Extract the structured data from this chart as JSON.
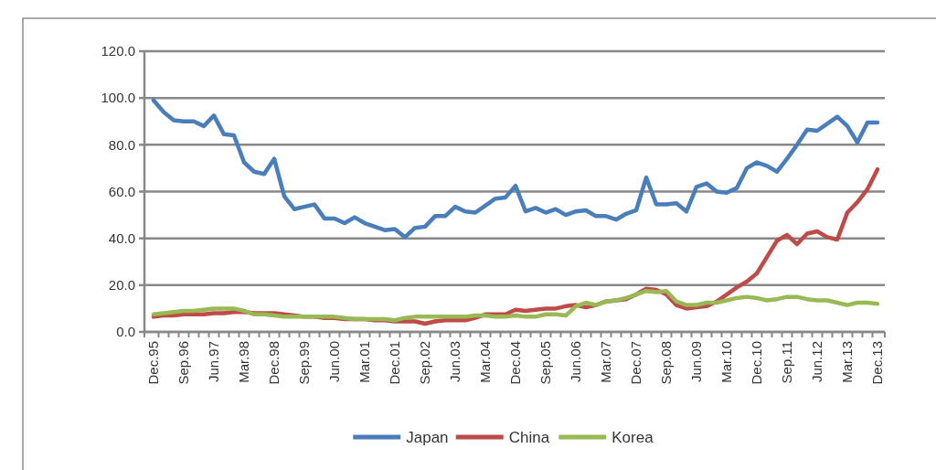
{
  "chart_data": {
    "type": "line",
    "categories": [
      "Dec.95",
      null,
      null,
      "Sep.96",
      null,
      null,
      "Jun.97",
      null,
      null,
      "Mar.98",
      null,
      null,
      "Dec.98",
      null,
      null,
      "Sep.99",
      null,
      null,
      "Jun.00",
      null,
      null,
      "Mar.01",
      null,
      null,
      "Dec.01",
      null,
      null,
      "Sep.02",
      null,
      null,
      "Jun.03",
      null,
      null,
      "Mar.04",
      null,
      null,
      "Dec.04",
      null,
      null,
      "Sep.05",
      null,
      null,
      "Jun.06",
      null,
      null,
      "Mar.07",
      null,
      null,
      "Dec.07",
      null,
      null,
      "Sep.08",
      null,
      null,
      "Jun.09",
      null,
      null,
      "Mar.10",
      null,
      null,
      "Dec.10",
      null,
      null,
      "Sep.11",
      null,
      null,
      "Jun.12",
      null,
      null,
      "Mar.13",
      null,
      null,
      "Dec.13"
    ],
    "series": [
      {
        "name": "Japan",
        "color": "#4a7ebb",
        "values": [
          99,
          94,
          90.5,
          90,
          90,
          88,
          92.5,
          84.5,
          84,
          72.5,
          68.5,
          67.5,
          74,
          58,
          52.5,
          53.5,
          54.5,
          48.5,
          48.5,
          46.5,
          49,
          46.5,
          45,
          43.5,
          44,
          40.5,
          44.5,
          45,
          49.5,
          49.5,
          53.5,
          51.5,
          51,
          54,
          57,
          57.5,
          62.5,
          51.5,
          53,
          51,
          52.5,
          50,
          51.5,
          52,
          49.5,
          49.5,
          48,
          50.5,
          52,
          66,
          54.5,
          54.5,
          55,
          51.5,
          62,
          63.5,
          60,
          59.5,
          61.5,
          70,
          72.5,
          71,
          68.5,
          74,
          80,
          86.5,
          86,
          89,
          92,
          88,
          81,
          89.5,
          89.5
        ]
      },
      {
        "name": "China",
        "color": "#be4b48",
        "values": [
          6.5,
          7,
          7,
          7.5,
          7.5,
          7.5,
          8,
          8,
          8.5,
          8.5,
          8,
          8,
          8,
          7.5,
          7,
          6.5,
          6.5,
          6,
          6,
          5.5,
          5.5,
          5.5,
          5,
          5,
          4.5,
          4.5,
          4.5,
          3.5,
          4.5,
          5,
          5,
          5,
          6,
          7.5,
          7.5,
          7.5,
          9.5,
          9,
          9.5,
          10,
          10,
          11,
          11.5,
          10.5,
          11.5,
          13,
          13.5,
          14,
          16,
          18.5,
          18,
          16,
          11.5,
          10,
          10.5,
          11,
          13,
          16,
          19,
          21.5,
          25,
          32,
          39,
          41.5,
          37.5,
          42,
          43,
          40.5,
          39.5,
          51,
          55.5,
          61,
          69.5
        ]
      },
      {
        "name": "Korea",
        "color": "#98b954",
        "values": [
          7.5,
          8,
          8.5,
          9,
          9,
          9.5,
          10,
          10,
          10,
          9,
          7.5,
          7.5,
          7,
          6.5,
          6.5,
          6.5,
          6.5,
          6.5,
          6.5,
          6,
          5.5,
          5.5,
          5.5,
          5.5,
          5,
          6,
          6.5,
          6.5,
          6.5,
          6.5,
          6.5,
          6.5,
          7,
          7,
          6.5,
          6.5,
          7,
          6.5,
          6.5,
          7.5,
          7.5,
          7,
          11,
          12.5,
          11.5,
          13,
          13.5,
          14.5,
          16,
          17.5,
          17,
          17.5,
          13,
          11.5,
          11.5,
          12.5,
          12.5,
          13.5,
          14.5,
          15,
          14.5,
          13.5,
          14,
          15,
          15,
          14,
          13.5,
          13.5,
          12.5,
          11.5,
          12.5,
          12.5,
          12
        ]
      }
    ],
    "ylim": [
      0,
      120
    ],
    "yticks": [
      {
        "value": 0,
        "label": "0.0"
      },
      {
        "value": 20,
        "label": "20.0"
      },
      {
        "value": 40,
        "label": "40.0"
      },
      {
        "value": 60,
        "label": "60.0"
      },
      {
        "value": 80,
        "label": "80.0"
      },
      {
        "value": 100,
        "label": "100.0"
      },
      {
        "value": 120,
        "label": "120.0"
      }
    ],
    "grid": "y",
    "legend": "bottom",
    "marker": "none",
    "line_style": "solid"
  }
}
